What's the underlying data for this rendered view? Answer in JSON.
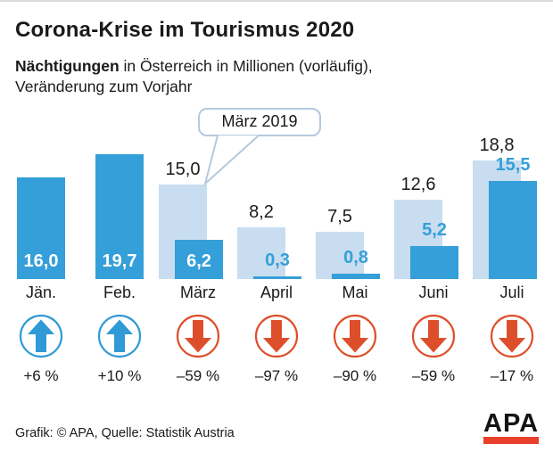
{
  "header": {
    "title": "Corona-Krise im Tourismus 2020",
    "subtitle_bold": "Nächtigungen",
    "subtitle_rest": " in Österreich in Millionen (vorläufig),",
    "subtitle_line2": "Veränderung zum Vorjahr"
  },
  "callout": {
    "label": "März 2019"
  },
  "months": [
    {
      "label": "Jän.",
      "value_2019": null,
      "display_2019": null,
      "value_2020": 16.0,
      "display_2020": "16,0",
      "change": "+6 %",
      "direction": "up",
      "value_label_position": "inside"
    },
    {
      "label": "Feb.",
      "value_2019": null,
      "display_2019": null,
      "value_2020": 19.7,
      "display_2020": "19,7",
      "change": "+10 %",
      "direction": "up",
      "value_label_position": "inside"
    },
    {
      "label": "März",
      "value_2019": 15.0,
      "display_2019": "15,0",
      "value_2020": 6.2,
      "display_2020": "6,2",
      "change": "–59 %",
      "direction": "down",
      "value_label_position": "inside"
    },
    {
      "label": "April",
      "value_2019": 8.2,
      "display_2019": "8,2",
      "value_2020": 0.3,
      "display_2020": "0,3",
      "change": "–97 %",
      "direction": "down",
      "value_label_position": "above"
    },
    {
      "label": "Mai",
      "value_2019": 7.5,
      "display_2019": "7,5",
      "value_2020": 0.8,
      "display_2020": "0,8",
      "change": "–90 %",
      "direction": "down",
      "value_label_position": "above"
    },
    {
      "label": "Juni",
      "value_2019": 12.6,
      "display_2019": "12,6",
      "value_2020": 5.2,
      "display_2020": "5,2",
      "change": "–59 %",
      "direction": "down",
      "value_label_position": "above"
    },
    {
      "label": "Juli",
      "value_2019": 18.8,
      "display_2019": "18,8",
      "value_2020": 15.5,
      "display_2020": "15,5",
      "change": "–17 %",
      "direction": "down",
      "value_label_position": "above"
    }
  ],
  "footer": {
    "credit": "Grafik: © APA, Quelle: Statistik Austria",
    "logo_text": "APA"
  },
  "colors": {
    "bar_2020": "#349fd8",
    "bar_2019": "#c8ddf0",
    "up": "#2f9ad5",
    "down": "#dd4f2a",
    "logo_red": "#e8402a",
    "bubble_border": "#b5c9de"
  },
  "chart_data": {
    "type": "bar",
    "title": "Corona-Krise im Tourismus 2020",
    "subtitle": "Nächtigungen in Österreich in Millionen (vorläufig), Veränderung zum Vorjahr",
    "categories": [
      "Jän.",
      "Feb.",
      "März",
      "April",
      "Mai",
      "Juni",
      "Juli"
    ],
    "series": [
      {
        "name": "Vorjahr (2019)",
        "values": [
          null,
          null,
          15.0,
          8.2,
          7.5,
          12.6,
          18.8
        ]
      },
      {
        "name": "2020",
        "values": [
          16.0,
          19.7,
          6.2,
          0.3,
          0.8,
          5.2,
          15.5
        ]
      }
    ],
    "change_vs_prior_year_pct": [
      6,
      10,
      -59,
      -97,
      -90,
      -59,
      -17
    ],
    "change_labels": [
      "+6 %",
      "+10 %",
      "–59 %",
      "–97 %",
      "–90 %",
      "–59 %",
      "–17 %"
    ],
    "annotation": "März 2019",
    "ylabel": "Nächtigungen in Millionen",
    "ylim": [
      0,
      20
    ],
    "grid": false,
    "legend": "none",
    "source": "Grafik: © APA, Quelle: Statistik Austria"
  }
}
